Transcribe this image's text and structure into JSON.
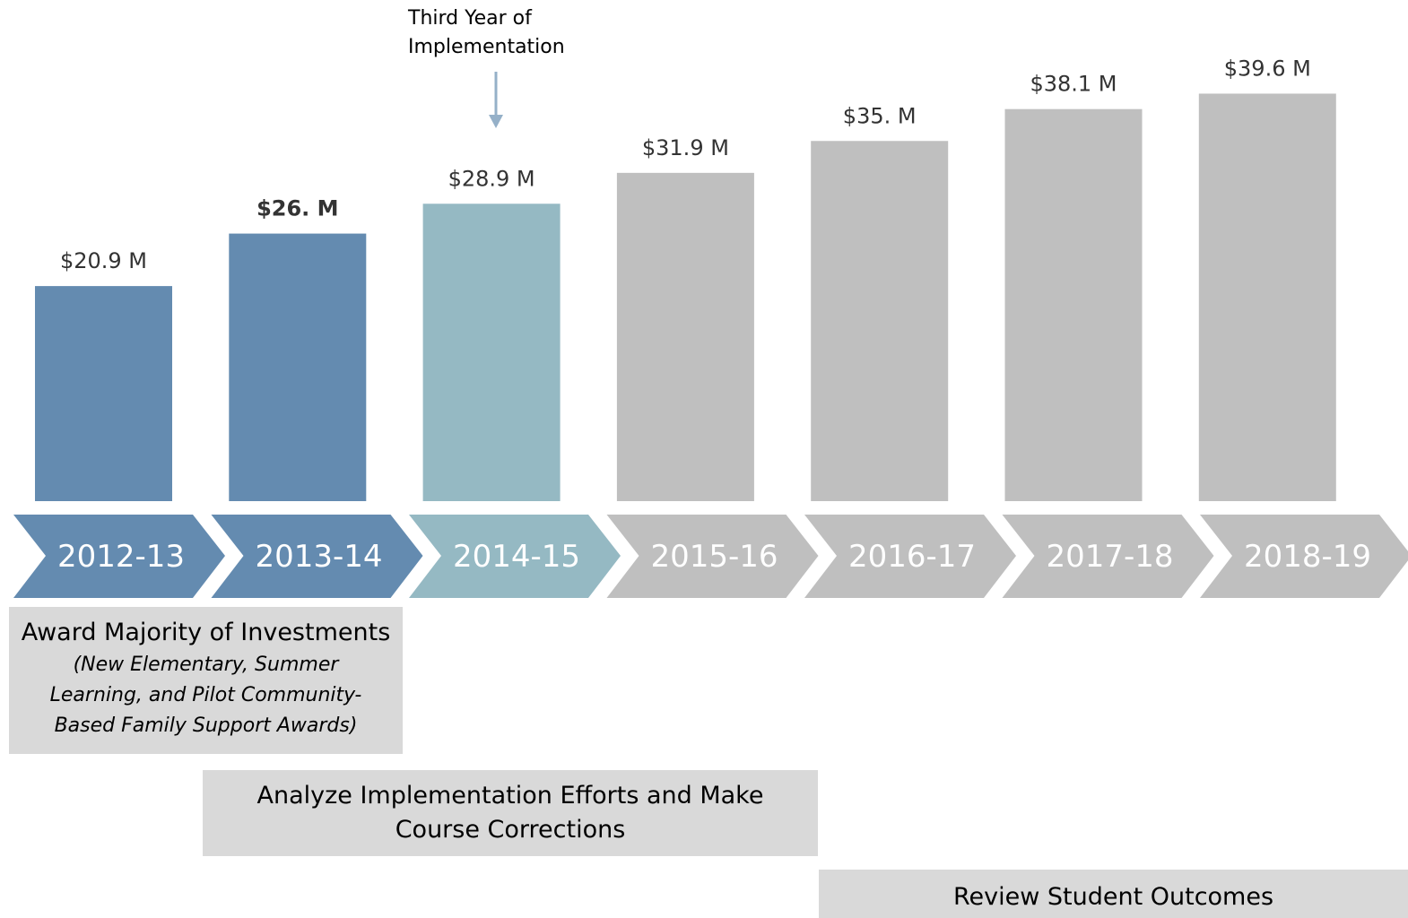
{
  "chart_data": {
    "type": "bar",
    "categories": [
      "2012-13",
      "2013-14",
      "2014-15",
      "2015-16",
      "2016-17",
      "2017-18",
      "2018-19"
    ],
    "values": [
      20.9,
      26,
      28.9,
      31.9,
      35,
      38.1,
      39.6
    ],
    "value_labels": [
      "$20.9 M",
      "$26. M",
      "$28.9 M",
      "$31.9 M",
      "$35. M",
      "$38.1 M",
      "$39.6 M"
    ],
    "colors": [
      "#648bb0",
      "#648bb0",
      "#95b9c3",
      "#bfbfbf",
      "#bfbfbf",
      "#bfbfbf",
      "#bfbfbf"
    ],
    "label_bold": [
      false,
      true,
      false,
      false,
      false,
      false,
      false
    ],
    "ylim": [
      0,
      48.7
    ],
    "annotation": "Third Year of Implementation",
    "phases": [
      {
        "title": "Award Majority of Investments",
        "subtitle": "(New Elementary, Summer Learning, and Pilot Community-Based Family Support Awards)"
      },
      {
        "title": "Analyze Implementation Efforts and Make Course Corrections"
      },
      {
        "title": "Review Student Outcomes"
      }
    ]
  }
}
